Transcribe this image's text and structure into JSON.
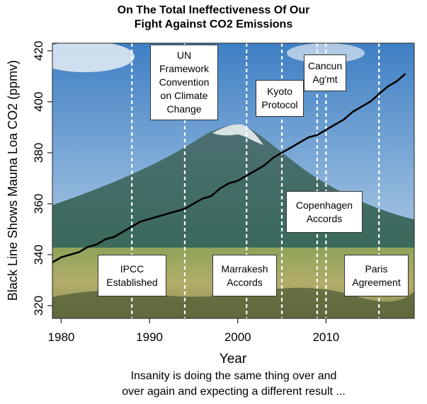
{
  "chart_data": {
    "type": "line",
    "title": [
      "On The Total Ineffectiveness Of Our",
      "Fight Against CO2 Emissions"
    ],
    "xlabel": "Year",
    "ylabel": "Black Line Shows Mauna Loa CO2 (ppmv)",
    "xlim": [
      1979,
      2020
    ],
    "ylim": [
      315,
      423
    ],
    "xticks": [
      1980,
      1990,
      2000,
      2010
    ],
    "yticks": [
      320,
      340,
      360,
      380,
      400,
      420
    ],
    "series": [
      {
        "x": [
          1979,
          1980,
          1981,
          1982,
          1983,
          1984,
          1985,
          1986,
          1987,
          1988,
          1989,
          1990,
          1991,
          1992,
          1993,
          1994,
          1995,
          1996,
          1997,
          1998,
          1999,
          2000,
          2001,
          2002,
          2003,
          2004,
          2005,
          2006,
          2007,
          2008,
          2009,
          2010,
          2011,
          2012,
          2013,
          2014,
          2015,
          2016,
          2017,
          2018,
          2019
        ],
        "values": [
          337,
          339,
          340,
          341,
          343,
          344,
          346,
          347,
          349,
          351,
          353,
          354,
          355,
          356,
          357,
          358,
          360,
          362,
          363,
          366,
          368,
          369,
          371,
          373,
          375,
          378,
          380,
          382,
          384,
          386,
          387,
          389,
          391,
          393,
          396,
          398,
          400,
          403,
          406,
          408,
          411
        ]
      }
    ],
    "events": [
      {
        "year": 1988,
        "label": [
          "IPCC",
          "Established"
        ]
      },
      {
        "year": 1994,
        "label": [
          "UN",
          "Framework",
          "Convention",
          "on Climate",
          "Change"
        ]
      },
      {
        "year": 2001,
        "label": [
          "Marrakesh",
          "Accords"
        ]
      },
      {
        "year": 2005,
        "label": [
          "Kyoto",
          "Protocol"
        ]
      },
      {
        "year": 2009,
        "label": [
          "Copenhagen",
          "Accords"
        ]
      },
      {
        "year": 2010,
        "label": [
          "Cancun",
          "Ag'mt"
        ]
      },
      {
        "year": 2016,
        "label": [
          "Paris",
          "Agreement"
        ]
      }
    ],
    "caption": [
      "Insanity is doing the same thing over and",
      "over again and expecting a different result ..."
    ]
  },
  "colors": {
    "line": "#000000",
    "event_line": "#ffffff",
    "sky_top": "#4f86c6",
    "mountain": "#3c6b6a",
    "grass": "#a9a761"
  }
}
